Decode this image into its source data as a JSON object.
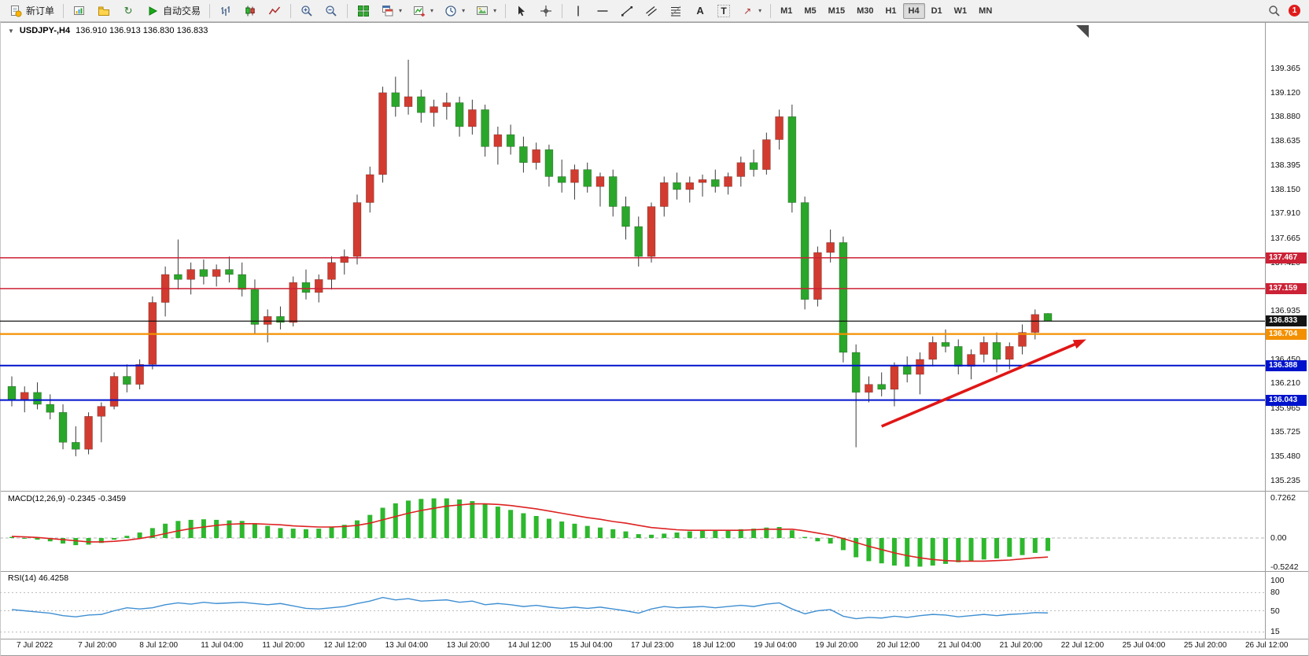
{
  "toolbar": {
    "new_order": "新订单",
    "autotrading": "自动交易",
    "timeframes": [
      "M1",
      "M5",
      "M15",
      "M30",
      "H1",
      "H4",
      "D1",
      "W1",
      "MN"
    ],
    "active_timeframe": "H4",
    "notification_count": "1"
  },
  "chart_header": {
    "symbol_period": "USDJPY-,H4",
    "ohlc": "136.910 136.913 136.830 136.833"
  },
  "price_axis": {
    "labels": [
      "139.365",
      "139.120",
      "138.880",
      "138.635",
      "138.395",
      "138.150",
      "137.910",
      "137.665",
      "137.420",
      "136.935",
      "136.450",
      "136.210",
      "135.965",
      "135.725",
      "135.480",
      "135.235"
    ],
    "badges": [
      {
        "label": "137.467",
        "color": "#cc2236"
      },
      {
        "label": "137.159",
        "color": "#cc2236"
      },
      {
        "label": "136.833",
        "color": "#141414"
      },
      {
        "label": "136.704",
        "color": "#f39000"
      },
      {
        "label": "136.388",
        "color": "#0013cc"
      },
      {
        "label": "136.043",
        "color": "#0013cc"
      }
    ]
  },
  "time_axis": [
    "7 Jul 2022",
    "7 Jul 20:00",
    "8 Jul 12:00",
    "11 Jul 04:00",
    "11 Jul 20:00",
    "12 Jul 12:00",
    "13 Jul 04:00",
    "13 Jul 20:00",
    "14 Jul 12:00",
    "15 Jul 04:00",
    "17 Jul 23:00",
    "18 Jul 12:00",
    "19 Jul 04:00",
    "19 Jul 20:00",
    "20 Jul 12:00",
    "21 Jul 04:00",
    "21 Jul 20:00",
    "22 Jul 12:00",
    "25 Jul 04:00",
    "25 Jul 20:00",
    "26 Jul 12:00"
  ],
  "macd_panel": {
    "label": "MACD(12,26,9) -0.2345 -0.3459",
    "scale": [
      "0.7262",
      "0.00",
      "-0.5242"
    ]
  },
  "rsi_panel": {
    "label": "RSI(14) 46.4258",
    "scale": [
      "100",
      "80",
      "50",
      "15"
    ]
  },
  "chart_data": {
    "type": "candlestick",
    "symbol": "USDJPY-",
    "period": "H4",
    "title": "USDJPY-,H4 136.910 136.913 136.830 136.833",
    "y_axis_range": [
      135.235,
      139.365
    ],
    "color_convention": "red-up-green-down",
    "up_color": "#d23b2f",
    "down_color": "#2aa62a",
    "candles": [
      [
        136.18,
        136.28,
        135.98,
        136.05
      ],
      [
        136.05,
        136.18,
        135.92,
        136.12
      ],
      [
        136.12,
        136.22,
        135.95,
        136.0
      ],
      [
        136.0,
        136.1,
        135.85,
        135.92
      ],
      [
        135.92,
        136.0,
        135.55,
        135.62
      ],
      [
        135.62,
        135.78,
        135.48,
        135.55
      ],
      [
        135.55,
        135.92,
        135.5,
        135.88
      ],
      [
        135.88,
        136.02,
        135.62,
        135.98
      ],
      [
        135.98,
        136.32,
        135.95,
        136.28
      ],
      [
        136.28,
        136.4,
        136.12,
        136.2
      ],
      [
        136.2,
        136.45,
        136.15,
        136.4
      ],
      [
        136.4,
        137.08,
        136.35,
        137.02
      ],
      [
        137.02,
        137.38,
        136.88,
        137.3
      ],
      [
        137.3,
        137.65,
        137.15,
        137.25
      ],
      [
        137.25,
        137.42,
        137.1,
        137.35
      ],
      [
        137.35,
        137.45,
        137.2,
        137.28
      ],
      [
        137.28,
        137.4,
        137.18,
        137.35
      ],
      [
        137.35,
        137.48,
        137.22,
        137.3
      ],
      [
        137.3,
        137.42,
        137.08,
        137.15
      ],
      [
        137.15,
        137.25,
        136.7,
        136.8
      ],
      [
        136.8,
        136.95,
        136.62,
        136.88
      ],
      [
        136.88,
        136.98,
        136.75,
        136.82
      ],
      [
        136.82,
        137.28,
        136.78,
        137.22
      ],
      [
        137.22,
        137.35,
        137.05,
        137.12
      ],
      [
        137.12,
        137.3,
        137.02,
        137.25
      ],
      [
        137.25,
        137.48,
        137.15,
        137.42
      ],
      [
        137.42,
        137.55,
        137.3,
        137.48
      ],
      [
        137.48,
        138.1,
        137.4,
        138.02
      ],
      [
        138.02,
        138.38,
        137.92,
        138.3
      ],
      [
        138.3,
        139.18,
        138.22,
        139.12
      ],
      [
        139.12,
        139.28,
        138.88,
        138.98
      ],
      [
        138.98,
        139.45,
        138.9,
        139.08
      ],
      [
        139.08,
        139.15,
        138.82,
        138.92
      ],
      [
        138.92,
        139.05,
        138.78,
        138.98
      ],
      [
        138.98,
        139.12,
        138.85,
        139.02
      ],
      [
        139.02,
        139.08,
        138.68,
        138.78
      ],
      [
        138.78,
        139.05,
        138.7,
        138.95
      ],
      [
        138.95,
        139.0,
        138.48,
        138.58
      ],
      [
        138.58,
        138.78,
        138.4,
        138.7
      ],
      [
        138.7,
        138.8,
        138.5,
        138.58
      ],
      [
        138.58,
        138.68,
        138.32,
        138.42
      ],
      [
        138.42,
        138.62,
        138.35,
        138.55
      ],
      [
        138.55,
        138.6,
        138.18,
        138.28
      ],
      [
        138.28,
        138.45,
        138.12,
        138.22
      ],
      [
        138.22,
        138.4,
        138.05,
        138.35
      ],
      [
        138.35,
        138.42,
        138.12,
        138.18
      ],
      [
        138.18,
        138.32,
        137.98,
        138.28
      ],
      [
        138.28,
        138.35,
        137.88,
        137.98
      ],
      [
        137.98,
        138.08,
        137.65,
        137.78
      ],
      [
        137.78,
        137.88,
        137.38,
        137.48
      ],
      [
        137.48,
        138.02,
        137.42,
        137.98
      ],
      [
        137.98,
        138.28,
        137.88,
        138.22
      ],
      [
        138.22,
        138.32,
        138.05,
        138.15
      ],
      [
        138.15,
        138.28,
        138.02,
        138.22
      ],
      [
        138.22,
        138.3,
        138.08,
        138.25
      ],
      [
        138.25,
        138.35,
        138.12,
        138.18
      ],
      [
        138.18,
        138.32,
        138.1,
        138.28
      ],
      [
        138.28,
        138.48,
        138.18,
        138.42
      ],
      [
        138.42,
        138.55,
        138.28,
        138.35
      ],
      [
        138.35,
        138.72,
        138.3,
        138.65
      ],
      [
        138.65,
        138.95,
        138.55,
        138.88
      ],
      [
        138.88,
        139.0,
        137.92,
        138.02
      ],
      [
        138.02,
        138.08,
        136.95,
        137.05
      ],
      [
        137.05,
        137.58,
        136.98,
        137.52
      ],
      [
        137.52,
        137.75,
        137.42,
        137.62
      ],
      [
        137.62,
        137.68,
        136.42,
        136.52
      ],
      [
        136.52,
        136.6,
        135.57,
        136.12
      ],
      [
        136.12,
        136.28,
        136.02,
        136.2
      ],
      [
        136.2,
        136.32,
        136.08,
        136.15
      ],
      [
        136.15,
        136.42,
        135.98,
        136.38
      ],
      [
        136.38,
        136.48,
        136.22,
        136.3
      ],
      [
        136.3,
        136.52,
        136.1,
        136.45
      ],
      [
        136.45,
        136.68,
        136.38,
        136.62
      ],
      [
        136.62,
        136.75,
        136.52,
        136.58
      ],
      [
        136.58,
        136.65,
        136.3,
        136.38
      ],
      [
        136.38,
        136.55,
        136.25,
        136.5
      ],
      [
        136.5,
        136.68,
        136.42,
        136.62
      ],
      [
        136.62,
        136.72,
        136.32,
        136.45
      ],
      [
        136.45,
        136.62,
        136.35,
        136.58
      ],
      [
        136.58,
        136.8,
        136.5,
        136.72
      ],
      [
        136.72,
        136.95,
        136.65,
        136.9
      ],
      [
        136.91,
        136.913,
        136.83,
        136.833
      ]
    ],
    "hlines": [
      {
        "price": 137.467,
        "color": "#cc2236",
        "width": 1.6
      },
      {
        "price": 137.159,
        "color": "#cc2236",
        "width": 1.6
      },
      {
        "price": 136.833,
        "color": "#141414",
        "width": 1.2
      },
      {
        "price": 136.704,
        "color": "#f39000",
        "width": 2.2
      },
      {
        "price": 136.388,
        "color": "#0013cc",
        "width": 2
      },
      {
        "price": 136.043,
        "color": "#0013cc",
        "width": 2
      }
    ],
    "trend_arrow": {
      "from_bar": 68,
      "from_price": 135.78,
      "to_bar": 84,
      "to_price": 136.65,
      "color": "#e01616"
    },
    "indicators": {
      "macd": {
        "name": "MACD(12,26,9)",
        "current_main": -0.2345,
        "current_signal": -0.3459,
        "histogram_color": "#2db82d",
        "signal_color": "#dd2222",
        "levels": [
          0
        ],
        "histogram": [
          0.02,
          -0.01,
          -0.03,
          -0.06,
          -0.1,
          -0.13,
          -0.12,
          -0.09,
          -0.03,
          0.04,
          0.1,
          0.18,
          0.26,
          0.31,
          0.33,
          0.34,
          0.33,
          0.32,
          0.31,
          0.27,
          0.22,
          0.18,
          0.17,
          0.16,
          0.17,
          0.2,
          0.24,
          0.32,
          0.42,
          0.55,
          0.63,
          0.68,
          0.71,
          0.72,
          0.72,
          0.7,
          0.67,
          0.62,
          0.57,
          0.51,
          0.45,
          0.4,
          0.35,
          0.3,
          0.26,
          0.22,
          0.19,
          0.16,
          0.12,
          0.07,
          0.06,
          0.08,
          0.1,
          0.12,
          0.13,
          0.13,
          0.14,
          0.16,
          0.17,
          0.19,
          0.2,
          0.14,
          0.02,
          -0.06,
          -0.1,
          -0.22,
          -0.35,
          -0.42,
          -0.46,
          -0.5,
          -0.52,
          -0.52,
          -0.5,
          -0.47,
          -0.44,
          -0.42,
          -0.39,
          -0.37,
          -0.34,
          -0.31,
          -0.27,
          -0.2345
        ],
        "signal": [
          0.03,
          0.02,
          0.01,
          -0.01,
          -0.03,
          -0.05,
          -0.07,
          -0.07,
          -0.06,
          -0.04,
          -0.01,
          0.03,
          0.08,
          0.13,
          0.17,
          0.2,
          0.23,
          0.25,
          0.26,
          0.26,
          0.25,
          0.24,
          0.22,
          0.21,
          0.2,
          0.2,
          0.21,
          0.23,
          0.27,
          0.33,
          0.39,
          0.45,
          0.5,
          0.54,
          0.58,
          0.6,
          0.62,
          0.62,
          0.61,
          0.59,
          0.56,
          0.53,
          0.49,
          0.45,
          0.41,
          0.37,
          0.34,
          0.3,
          0.27,
          0.23,
          0.19,
          0.17,
          0.15,
          0.14,
          0.14,
          0.14,
          0.14,
          0.14,
          0.15,
          0.16,
          0.16,
          0.16,
          0.13,
          0.09,
          0.05,
          -0.01,
          -0.08,
          -0.15,
          -0.21,
          -0.27,
          -0.32,
          -0.36,
          -0.39,
          -0.41,
          -0.42,
          -0.42,
          -0.42,
          -0.41,
          -0.4,
          -0.38,
          -0.36,
          -0.3459
        ]
      },
      "rsi": {
        "name": "RSI(14)",
        "current": 46.4258,
        "color": "#3f8fd2",
        "levels": [
          80,
          50,
          15
        ],
        "values": [
          52,
          50,
          48,
          46,
          42,
          40,
          43,
          44,
          50,
          55,
          53,
          55,
          60,
          63,
          61,
          64,
          62,
          63,
          64,
          62,
          60,
          62,
          58,
          54,
          53,
          55,
          57,
          62,
          66,
          72,
          68,
          70,
          66,
          67,
          68,
          64,
          66,
          60,
          62,
          60,
          57,
          59,
          56,
          54,
          56,
          54,
          56,
          53,
          50,
          46,
          53,
          57,
          55,
          56,
          57,
          55,
          57,
          59,
          57,
          61,
          63,
          53,
          45,
          50,
          52,
          41,
          37,
          39,
          38,
          41,
          39,
          42,
          44,
          43,
          40,
          42,
          44,
          42,
          44,
          45,
          47,
          46.4258
        ]
      }
    }
  }
}
